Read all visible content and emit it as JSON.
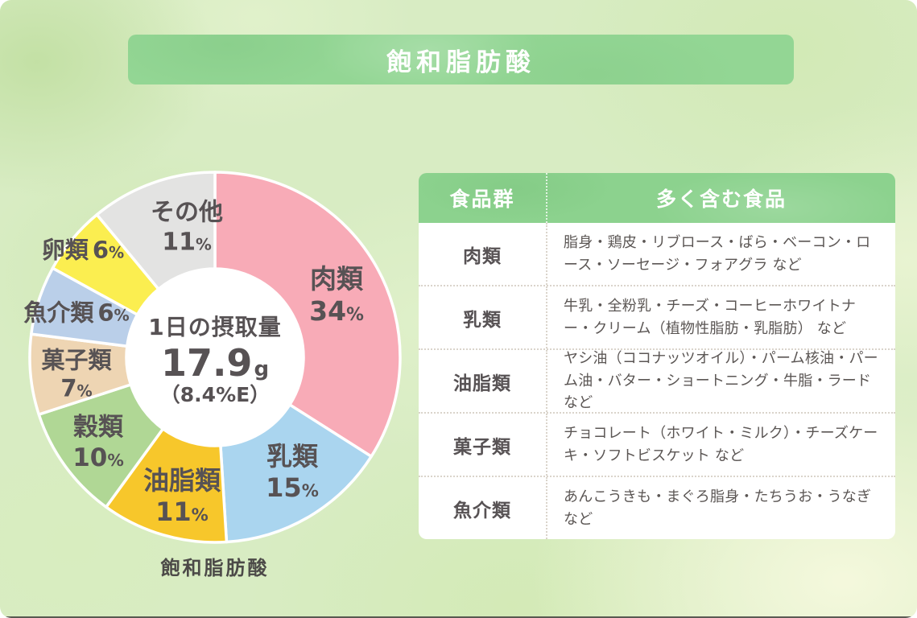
{
  "page": {
    "title_banner": "飽和脂肪酸",
    "chart_caption": "飽和脂肪酸"
  },
  "chart_data": {
    "type": "pie",
    "subtype": "donut",
    "title": "飽和脂肪酸",
    "value_suffix": "%",
    "start_angle_deg": 0,
    "direction": "clockwise",
    "center": {
      "line1": "1日の摂取量",
      "value": "17.9",
      "unit": "g",
      "sub": "（8.4%E）"
    },
    "segments": [
      {
        "label": "肉類",
        "value": 34,
        "color": "#f8abb7"
      },
      {
        "label": "乳類",
        "value": 15,
        "color": "#aad5ef"
      },
      {
        "label": "油脂類",
        "value": 11,
        "color": "#f7c72b"
      },
      {
        "label": "穀類",
        "value": 10,
        "color": "#b0d795"
      },
      {
        "label": "菓子類",
        "value": 7,
        "color": "#eed5b3"
      },
      {
        "label": "魚介類",
        "value": 6,
        "color": "#bacfe9"
      },
      {
        "label": "卵類",
        "value": 6,
        "color": "#fbee50"
      },
      {
        "label": "その他",
        "value": 11,
        "color": "#e3e3e2"
      }
    ]
  },
  "table": {
    "headers": [
      "食品群",
      "多く含む食品"
    ],
    "rows": [
      {
        "group": "肉類",
        "foods": "脂身・鶏皮・リブロース・ばら・ベーコン・ロース・ソーセージ・フォアグラ など"
      },
      {
        "group": "乳類",
        "foods": "牛乳・全粉乳・チーズ・コーヒーホワイトナー・クリーム（植物性脂肪・乳脂肪） など"
      },
      {
        "group": "油脂類",
        "foods": "ヤシ油（ココナッツオイル）・パーム核油・パーム油・バター・ショートニング・牛脂・ラード など"
      },
      {
        "group": "菓子類",
        "foods": "チョコレート（ホワイト・ミルク）・チーズケーキ・ソフトビスケット など"
      },
      {
        "group": "魚介類",
        "foods": "あんこうきも・まぐろ脂身・たちうお・うなぎ など"
      }
    ]
  },
  "colors": {
    "banner_green": "#93d694",
    "header_green": "#8cd28e",
    "text_dark": "#575254",
    "background_green": "#d8ecc3",
    "table_white": "#ffffff"
  }
}
